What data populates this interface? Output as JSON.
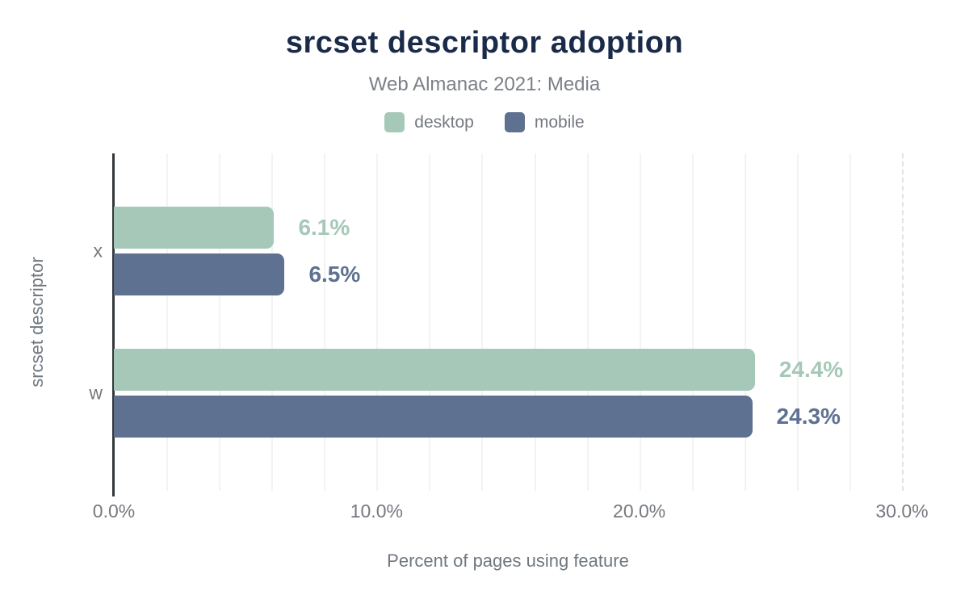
{
  "header": {
    "title": "srcset descriptor adoption",
    "subtitle": "Web Almanac 2021: Media"
  },
  "legend": {
    "items": [
      {
        "label": "desktop",
        "color": "#a5c8b8"
      },
      {
        "label": "mobile",
        "color": "#5e7190"
      }
    ]
  },
  "chart_data": {
    "type": "bar",
    "orientation": "horizontal",
    "title": "srcset descriptor adoption",
    "subtitle": "Web Almanac 2021: Media",
    "categories": [
      "x",
      "w"
    ],
    "series": [
      {
        "name": "desktop",
        "color": "#a5c8b8",
        "values": [
          6.1,
          24.4
        ],
        "value_labels": [
          "6.1%",
          "24.4%"
        ]
      },
      {
        "name": "mobile",
        "color": "#5e7190",
        "values": [
          6.5,
          24.3
        ],
        "value_labels": [
          "6.5%",
          "24.3%"
        ]
      }
    ],
    "xlabel": "Percent of pages using feature",
    "ylabel": "srcset descriptor",
    "xlim": [
      0,
      30
    ],
    "x_ticks": [
      {
        "value": 0,
        "label": "0.0%"
      },
      {
        "value": 10,
        "label": "10.0%"
      },
      {
        "value": 20,
        "label": "20.0%"
      },
      {
        "value": 30,
        "label": "30.0%"
      }
    ],
    "grid": true,
    "grid_minor_step": 2,
    "legend_position": "top"
  },
  "colors": {
    "title": "#1a2b49",
    "subtitle": "#7b7f87",
    "axis_text": "#75797f",
    "axis_line": "#34383c",
    "gridline": "#f3f3f3",
    "gridline_dashed": "#e2e2e2",
    "background": "#ffffff"
  }
}
